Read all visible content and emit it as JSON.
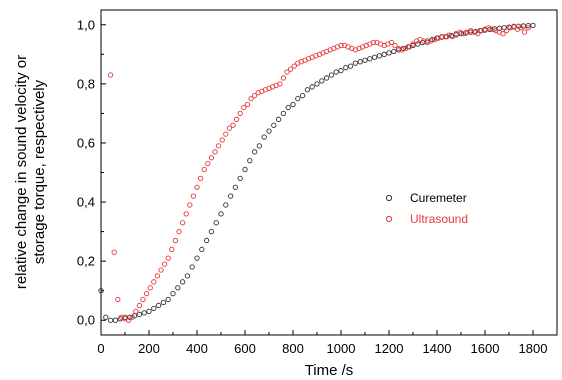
{
  "chart_data": {
    "type": "scatter",
    "xlabel": "Time /s",
    "ylabel_lines": [
      "relative change in sound velocity or",
      "storage torque, respectively"
    ],
    "xlim": [
      0,
      1900
    ],
    "ylim": [
      -0.05,
      1.05
    ],
    "x_ticks": [
      0,
      200,
      400,
      600,
      800,
      1000,
      1200,
      1400,
      1600,
      1800
    ],
    "x_tick_labels": [
      "0",
      "200",
      "400",
      "600",
      "800",
      "1000",
      "1200",
      "1400",
      "1600",
      "1800"
    ],
    "y_ticks": [
      0.0,
      0.2,
      0.4,
      0.6,
      0.8,
      1.0
    ],
    "y_tick_labels": [
      "0,0",
      "0,2",
      "0,4",
      "0,6",
      "0,8",
      "1,0"
    ],
    "grid": false,
    "legend_position": "center-right",
    "series": [
      {
        "name": "Curemeter",
        "color": "#333333",
        "marker": "open-circle",
        "points": [
          [
            0,
            0.1
          ],
          [
            20,
            0.01
          ],
          [
            40,
            0.0
          ],
          [
            60,
            0.0
          ],
          [
            80,
            0.005
          ],
          [
            100,
            0.01
          ],
          [
            120,
            0.01
          ],
          [
            140,
            0.015
          ],
          [
            160,
            0.02
          ],
          [
            180,
            0.025
          ],
          [
            200,
            0.03
          ],
          [
            220,
            0.04
          ],
          [
            240,
            0.05
          ],
          [
            260,
            0.06
          ],
          [
            280,
            0.07
          ],
          [
            300,
            0.09
          ],
          [
            320,
            0.11
          ],
          [
            340,
            0.13
          ],
          [
            360,
            0.15
          ],
          [
            380,
            0.18
          ],
          [
            400,
            0.21
          ],
          [
            420,
            0.24
          ],
          [
            440,
            0.27
          ],
          [
            460,
            0.3
          ],
          [
            480,
            0.33
          ],
          [
            500,
            0.36
          ],
          [
            520,
            0.39
          ],
          [
            540,
            0.42
          ],
          [
            560,
            0.45
          ],
          [
            580,
            0.48
          ],
          [
            600,
            0.51
          ],
          [
            620,
            0.54
          ],
          [
            640,
            0.57
          ],
          [
            660,
            0.59
          ],
          [
            680,
            0.62
          ],
          [
            700,
            0.64
          ],
          [
            720,
            0.66
          ],
          [
            740,
            0.68
          ],
          [
            760,
            0.7
          ],
          [
            780,
            0.72
          ],
          [
            800,
            0.73
          ],
          [
            820,
            0.75
          ],
          [
            840,
            0.76
          ],
          [
            860,
            0.78
          ],
          [
            880,
            0.79
          ],
          [
            900,
            0.8
          ],
          [
            920,
            0.81
          ],
          [
            940,
            0.82
          ],
          [
            960,
            0.83
          ],
          [
            980,
            0.84
          ],
          [
            1000,
            0.845
          ],
          [
            1020,
            0.855
          ],
          [
            1040,
            0.86
          ],
          [
            1060,
            0.87
          ],
          [
            1080,
            0.875
          ],
          [
            1100,
            0.88
          ],
          [
            1120,
            0.885
          ],
          [
            1140,
            0.89
          ],
          [
            1160,
            0.895
          ],
          [
            1180,
            0.9
          ],
          [
            1200,
            0.905
          ],
          [
            1220,
            0.91
          ],
          [
            1240,
            0.915
          ],
          [
            1260,
            0.92
          ],
          [
            1280,
            0.925
          ],
          [
            1300,
            0.93
          ],
          [
            1320,
            0.935
          ],
          [
            1340,
            0.94
          ],
          [
            1360,
            0.945
          ],
          [
            1380,
            0.95
          ],
          [
            1400,
            0.955
          ],
          [
            1420,
            0.958
          ],
          [
            1440,
            0.96
          ],
          [
            1460,
            0.963
          ],
          [
            1480,
            0.966
          ],
          [
            1500,
            0.97
          ],
          [
            1520,
            0.972
          ],
          [
            1540,
            0.975
          ],
          [
            1560,
            0.977
          ],
          [
            1580,
            0.98
          ],
          [
            1600,
            0.982
          ],
          [
            1620,
            0.984
          ],
          [
            1640,
            0.986
          ],
          [
            1660,
            0.988
          ],
          [
            1680,
            0.99
          ],
          [
            1700,
            0.992
          ],
          [
            1720,
            0.993
          ],
          [
            1740,
            0.995
          ],
          [
            1760,
            0.996
          ],
          [
            1780,
            0.997
          ],
          [
            1800,
            0.998
          ]
        ]
      },
      {
        "name": "Ultrasound",
        "color": "#e8393b",
        "marker": "open-circle",
        "points": [
          [
            40,
            0.83
          ],
          [
            55,
            0.23
          ],
          [
            70,
            0.07
          ],
          [
            85,
            0.01
          ],
          [
            100,
            0.005
          ],
          [
            115,
            0.0
          ],
          [
            130,
            0.01
          ],
          [
            145,
            0.03
          ],
          [
            160,
            0.05
          ],
          [
            175,
            0.07
          ],
          [
            190,
            0.09
          ],
          [
            205,
            0.11
          ],
          [
            220,
            0.13
          ],
          [
            235,
            0.15
          ],
          [
            250,
            0.17
          ],
          [
            265,
            0.19
          ],
          [
            280,
            0.21
          ],
          [
            295,
            0.24
          ],
          [
            310,
            0.27
          ],
          [
            325,
            0.3
          ],
          [
            340,
            0.33
          ],
          [
            355,
            0.36
          ],
          [
            370,
            0.39
          ],
          [
            385,
            0.42
          ],
          [
            400,
            0.45
          ],
          [
            415,
            0.48
          ],
          [
            430,
            0.51
          ],
          [
            445,
            0.53
          ],
          [
            460,
            0.55
          ],
          [
            475,
            0.57
          ],
          [
            490,
            0.59
          ],
          [
            505,
            0.61
          ],
          [
            520,
            0.63
          ],
          [
            535,
            0.65
          ],
          [
            550,
            0.66
          ],
          [
            565,
            0.68
          ],
          [
            580,
            0.7
          ],
          [
            595,
            0.72
          ],
          [
            610,
            0.73
          ],
          [
            625,
            0.75
          ],
          [
            640,
            0.76
          ],
          [
            655,
            0.77
          ],
          [
            670,
            0.775
          ],
          [
            685,
            0.78
          ],
          [
            700,
            0.785
          ],
          [
            715,
            0.79
          ],
          [
            730,
            0.795
          ],
          [
            745,
            0.8
          ],
          [
            760,
            0.82
          ],
          [
            775,
            0.84
          ],
          [
            790,
            0.85
          ],
          [
            805,
            0.86
          ],
          [
            820,
            0.87
          ],
          [
            835,
            0.875
          ],
          [
            850,
            0.88
          ],
          [
            865,
            0.885
          ],
          [
            880,
            0.89
          ],
          [
            895,
            0.895
          ],
          [
            910,
            0.9
          ],
          [
            925,
            0.905
          ],
          [
            940,
            0.91
          ],
          [
            955,
            0.915
          ],
          [
            970,
            0.92
          ],
          [
            985,
            0.925
          ],
          [
            1000,
            0.93
          ],
          [
            1015,
            0.93
          ],
          [
            1030,
            0.925
          ],
          [
            1045,
            0.92
          ],
          [
            1060,
            0.915
          ],
          [
            1075,
            0.92
          ],
          [
            1090,
            0.925
          ],
          [
            1105,
            0.93
          ],
          [
            1120,
            0.935
          ],
          [
            1135,
            0.94
          ],
          [
            1150,
            0.94
          ],
          [
            1165,
            0.935
          ],
          [
            1180,
            0.93
          ],
          [
            1195,
            0.935
          ],
          [
            1210,
            0.94
          ],
          [
            1225,
            0.93
          ],
          [
            1240,
            0.92
          ],
          [
            1255,
            0.915
          ],
          [
            1270,
            0.92
          ],
          [
            1285,
            0.925
          ],
          [
            1300,
            0.935
          ],
          [
            1315,
            0.945
          ],
          [
            1330,
            0.95
          ],
          [
            1345,
            0.945
          ],
          [
            1360,
            0.94
          ],
          [
            1375,
            0.945
          ],
          [
            1390,
            0.95
          ],
          [
            1405,
            0.955
          ],
          [
            1420,
            0.96
          ],
          [
            1435,
            0.96
          ],
          [
            1450,
            0.965
          ],
          [
            1465,
            0.96
          ],
          [
            1480,
            0.97
          ],
          [
            1495,
            0.975
          ],
          [
            1510,
            0.97
          ],
          [
            1525,
            0.975
          ],
          [
            1540,
            0.98
          ],
          [
            1555,
            0.975
          ],
          [
            1570,
            0.97
          ],
          [
            1585,
            0.98
          ],
          [
            1600,
            0.985
          ],
          [
            1615,
            0.99
          ],
          [
            1630,
            0.985
          ],
          [
            1645,
            0.98
          ],
          [
            1660,
            0.975
          ],
          [
            1675,
            0.97
          ],
          [
            1690,
            0.98
          ],
          [
            1705,
            0.99
          ],
          [
            1720,
            0.995
          ],
          [
            1735,
            0.985
          ],
          [
            1750,
            0.99
          ],
          [
            1765,
            0.975
          ],
          [
            1780,
            0.99
          ]
        ]
      }
    ]
  }
}
